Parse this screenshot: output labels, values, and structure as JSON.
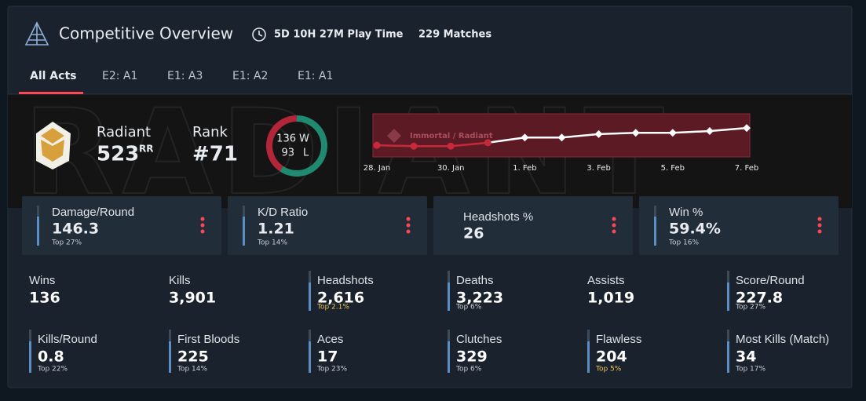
{
  "header": {
    "title": "Competitive Overview",
    "play_time": "5D 10H 27M Play Time",
    "matches": "229 Matches"
  },
  "tabs": [
    "All Acts",
    "E2: A1",
    "E1: A3",
    "E1: A2",
    "E1: A1"
  ],
  "rank": {
    "watermark": "RADIANT",
    "tier": "Radiant",
    "rr": "523",
    "rr_unit": "RR",
    "rank_label": "Rank",
    "rank": "#71"
  },
  "record": {
    "wins": 136,
    "win_label": "W",
    "losses": 93,
    "loss_label": "L"
  },
  "chart_data": {
    "type": "line",
    "band_label": "Immortal / Radiant",
    "categories": [
      "28. Jan",
      null,
      "30. Jan",
      null,
      "1. Feb",
      null,
      "3. Feb",
      null,
      "5. Feb",
      null,
      "7. Feb"
    ],
    "values": [
      27,
      25,
      25,
      33,
      45,
      45,
      53,
      56,
      56,
      60,
      67
    ],
    "ylim": [
      0,
      100
    ],
    "band": [
      0,
      100
    ],
    "color": "#ffffff",
    "below_color": "#c8283c",
    "band_color": "#5c1a24"
  },
  "cards": [
    {
      "label": "Damage/Round",
      "value": "146.3",
      "top": "Top 27%"
    },
    {
      "label": "K/D Ratio",
      "value": "1.21",
      "top": "Top 14%"
    },
    {
      "label": "Headshots %",
      "value": "26"
    },
    {
      "label": "Win %",
      "value": "59.4%",
      "top": "Top 16%"
    }
  ],
  "stats": [
    [
      {
        "label": "Wins",
        "value": "136"
      },
      {
        "label": "Kills",
        "value": "3,901"
      },
      {
        "label": "Headshots",
        "value": "2,616",
        "top": "Top 2.1%",
        "highlight": true
      },
      {
        "label": "Deaths",
        "value": "3,223",
        "top": "Top 6%"
      },
      {
        "label": "Assists",
        "value": "1,019"
      },
      {
        "label": "Score/Round",
        "value": "227.8",
        "top": "Top 27%"
      }
    ],
    [
      {
        "label": "Kills/Round",
        "value": "0.8",
        "top": "Top 22%"
      },
      {
        "label": "First Bloods",
        "value": "225",
        "top": "Top 14%"
      },
      {
        "label": "Aces",
        "value": "17",
        "top": "Top 23%"
      },
      {
        "label": "Clutches",
        "value": "329",
        "top": "Top 6%"
      },
      {
        "label": "Flawless",
        "value": "204",
        "top": "Top 5%",
        "highlight": true
      },
      {
        "label": "Most Kills (Match)",
        "value": "34",
        "top": "Top 17%"
      }
    ]
  ]
}
